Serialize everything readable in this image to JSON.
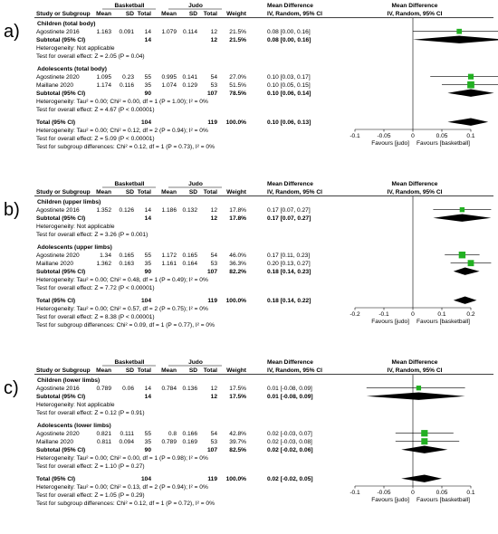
{
  "column_headers": {
    "study": "Study or Subgroup",
    "group1": "Basketball",
    "group2": "Judo",
    "mean": "Mean",
    "sd": "SD",
    "total": "Total",
    "weight": "Weight",
    "md_title": "Mean Difference",
    "md_method": "IV, Random, 95% CI"
  },
  "panels": [
    {
      "letter": "a)",
      "subgroups": [
        {
          "title": "Children (total body)",
          "studies": [
            {
              "name": "Agostinete 2016",
              "m1": "1.163",
              "sd1": "0.091",
              "n1": "14",
              "m2": "1.079",
              "sd2": "0.114",
              "n2": "12",
              "weight": "21.5%",
              "ci_text": "0.08 [0.00, 0.16]",
              "est": 0.08,
              "lo": 0.0,
              "hi": 0.16
            }
          ],
          "subtotal": {
            "label": "Subtotal (95% CI)",
            "n1": "14",
            "n2": "12",
            "weight": "21.5%",
            "ci_text": "0.08 [0.00, 0.16]",
            "est": 0.08,
            "lo": 0.0,
            "hi": 0.16
          },
          "heterogeneity": "Heterogeneity: Not applicable",
          "overall_test": "Test for overall effect: Z = 2.05 (P = 0.04)"
        },
        {
          "title": "Adolescents (total body)",
          "studies": [
            {
              "name": "Agostinete 2020",
              "m1": "1.095",
              "sd1": "0.23",
              "n1": "55",
              "m2": "0.995",
              "sd2": "0.141",
              "n2": "54",
              "weight": "27.0%",
              "ci_text": "0.10 [0.03, 0.17]",
              "est": 0.1,
              "lo": 0.03,
              "hi": 0.17
            },
            {
              "name": "Maillane 2020",
              "m1": "1.174",
              "sd1": "0.116",
              "n1": "35",
              "m2": "1.074",
              "sd2": "0.129",
              "n2": "53",
              "weight": "51.5%",
              "ci_text": "0.10 [0.05, 0.15]",
              "est": 0.1,
              "lo": 0.05,
              "hi": 0.15
            }
          ],
          "subtotal": {
            "label": "Subtotal (95% CI)",
            "n1": "90",
            "n2": "107",
            "weight": "78.5%",
            "ci_text": "0.10 [0.06, 0.14]",
            "est": 0.1,
            "lo": 0.06,
            "hi": 0.14
          },
          "heterogeneity": "Heterogeneity: Tau² = 0.00; Chi² = 0.00, df = 1 (P = 1.00); I² = 0%",
          "overall_test": "Test for overall effect: Z = 4.67 (P < 0.00001)"
        }
      ],
      "total": {
        "label": "Total (95% CI)",
        "n1": "104",
        "n2": "119",
        "weight": "100.0%",
        "ci_text": "0.10 [0.06, 0.13]",
        "est": 0.1,
        "lo": 0.06,
        "hi": 0.13
      },
      "footer": [
        "Heterogeneity: Tau² = 0.00; Chi² = 0.12, df = 2 (P = 0.94); I² = 0%",
        "Test for overall effect: Z = 5.09 (P < 0.00001)",
        "Test for subgroup differences: Chi² = 0.12, df = 1 (P = 0.73), I² = 0%"
      ],
      "axis": {
        "min": -0.1,
        "max": 0.1,
        "ticks": [
          -0.1,
          -0.05,
          0,
          0.05,
          0.1
        ],
        "tick_labels": [
          "-0.1",
          "-0.05",
          "0",
          "0.05",
          "0.1"
        ],
        "fav_left": "Favours [judo]",
        "fav_right": "Favours [basketball]"
      }
    },
    {
      "letter": "b)",
      "subgroups": [
        {
          "title": "Children (upper limbs)",
          "studies": [
            {
              "name": "Agostinete 2016",
              "m1": "1.352",
              "sd1": "0.126",
              "n1": "14",
              "m2": "1.186",
              "sd2": "0.132",
              "n2": "12",
              "weight": "17.8%",
              "ci_text": "0.17 [0.07, 0.27]",
              "est": 0.17,
              "lo": 0.07,
              "hi": 0.27
            }
          ],
          "subtotal": {
            "label": "Subtotal (95% CI)",
            "n1": "14",
            "n2": "12",
            "weight": "17.8%",
            "ci_text": "0.17 [0.07, 0.27]",
            "est": 0.17,
            "lo": 0.07,
            "hi": 0.27
          },
          "heterogeneity": "Heterogeneity: Not applicable",
          "overall_test": "Test for overall effect: Z = 3.26 (P = 0.001)"
        },
        {
          "title": "Adolescents (upper limbs)",
          "studies": [
            {
              "name": "Agostinete 2020",
              "m1": "1.34",
              "sd1": "0.165",
              "n1": "55",
              "m2": "1.172",
              "sd2": "0.165",
              "n2": "54",
              "weight": "46.0%",
              "ci_text": "0.17 [0.11, 0.23]",
              "est": 0.17,
              "lo": 0.11,
              "hi": 0.23
            },
            {
              "name": "Maillane 2020",
              "m1": "1.362",
              "sd1": "0.163",
              "n1": "35",
              "m2": "1.161",
              "sd2": "0.164",
              "n2": "53",
              "weight": "36.3%",
              "ci_text": "0.20 [0.13, 0.27]",
              "est": 0.2,
              "lo": 0.13,
              "hi": 0.27
            }
          ],
          "subtotal": {
            "label": "Subtotal (95% CI)",
            "n1": "90",
            "n2": "107",
            "weight": "82.2%",
            "ci_text": "0.18 [0.14, 0.23]",
            "est": 0.18,
            "lo": 0.14,
            "hi": 0.23
          },
          "heterogeneity": "Heterogeneity: Tau² = 0.00; Chi² = 0.48, df = 1 (P = 0.49); I² = 0%",
          "overall_test": "Test for overall effect: Z = 7.72 (P < 0.00001)"
        }
      ],
      "total": {
        "label": "Total (95% CI)",
        "n1": "104",
        "n2": "119",
        "weight": "100.0%",
        "ci_text": "0.18 [0.14, 0.22]",
        "est": 0.18,
        "lo": 0.14,
        "hi": 0.22
      },
      "footer": [
        "Heterogeneity: Tau² = 0.00; Chi² = 0.57, df = 2 (P = 0.75); I² = 0%",
        "Test for overall effect: Z = 8.38 (P < 0.00001)",
        "Test for subgroup differences: Chi² = 0.09, df = 1 (P = 0.77), I² = 0%"
      ],
      "axis": {
        "min": -0.2,
        "max": 0.2,
        "ticks": [
          -0.2,
          -0.1,
          0,
          0.1,
          0.2
        ],
        "tick_labels": [
          "-0.2",
          "-0.1",
          "0",
          "0.1",
          "0.2"
        ],
        "fav_left": "Favours [judo]",
        "fav_right": "Favours [basketball]"
      }
    },
    {
      "letter": "c)",
      "subgroups": [
        {
          "title": "Children (lower limbs)",
          "studies": [
            {
              "name": "Agostinete 2016",
              "m1": "0.789",
              "sd1": "0.06",
              "n1": "14",
              "m2": "0.784",
              "sd2": "0.136",
              "n2": "12",
              "weight": "17.5%",
              "ci_text": "0.01 [-0.08, 0.09]",
              "est": 0.01,
              "lo": -0.08,
              "hi": 0.09
            }
          ],
          "subtotal": {
            "label": "Subtotal (95% CI)",
            "n1": "14",
            "n2": "12",
            "weight": "17.5%",
            "ci_text": "0.01 [-0.08, 0.09]",
            "est": 0.01,
            "lo": -0.08,
            "hi": 0.09
          },
          "heterogeneity": "Heterogeneity: Not applicable",
          "overall_test": "Test for overall effect: Z = 0.12 (P = 0.91)"
        },
        {
          "title": "Adolescents (lower limbs)",
          "studies": [
            {
              "name": "Agostinete 2020",
              "m1": "0.821",
              "sd1": "0.111",
              "n1": "55",
              "m2": "0.8",
              "sd2": "0.166",
              "n2": "54",
              "weight": "42.8%",
              "ci_text": "0.02 [-0.03, 0.07]",
              "est": 0.02,
              "lo": -0.03,
              "hi": 0.07
            },
            {
              "name": "Maillane 2020",
              "m1": "0.811",
              "sd1": "0.094",
              "n1": "35",
              "m2": "0.789",
              "sd2": "0.169",
              "n2": "53",
              "weight": "39.7%",
              "ci_text": "0.02 [-0.03, 0.08]",
              "est": 0.02,
              "lo": -0.03,
              "hi": 0.08
            }
          ],
          "subtotal": {
            "label": "Subtotal (95% CI)",
            "n1": "90",
            "n2": "107",
            "weight": "82.5%",
            "ci_text": "0.02 [-0.02, 0.06]",
            "est": 0.02,
            "lo": -0.02,
            "hi": 0.06
          },
          "heterogeneity": "Heterogeneity: Tau² = 0.00; Chi² = 0.00, df = 1 (P = 0.98); I² = 0%",
          "overall_test": "Test for overall effect: Z = 1.10 (P = 0.27)"
        }
      ],
      "total": {
        "label": "Total (95% CI)",
        "n1": "104",
        "n2": "119",
        "weight": "100.0%",
        "ci_text": "0.02 [-0.02, 0.05]",
        "est": 0.02,
        "lo": -0.02,
        "hi": 0.05
      },
      "footer": [
        "Heterogeneity: Tau² = 0.00; Chi² = 0.13, df = 2 (P = 0.94); I² = 0%",
        "Test for overall effect: Z = 1.05 (P = 0.29)",
        "Test for subgroup differences: Chi² = 0.12, df = 1 (P = 0.72), I² = 0%"
      ],
      "axis": {
        "min": -0.1,
        "max": 0.1,
        "ticks": [
          -0.1,
          -0.05,
          0,
          0.05,
          0.1
        ],
        "tick_labels": [
          "-0.1",
          "-0.05",
          "0",
          "0.05",
          "0.1"
        ],
        "fav_left": "Favours [judo]",
        "fav_right": "Favours [basketball]"
      }
    }
  ],
  "colors": {
    "square": "#22b022",
    "diamond": "#000000",
    "line": "#000000"
  },
  "chart_data": {
    "type": "forest",
    "measure": "Mean Difference (IV, Random, 95% CI)",
    "panels": [
      {
        "label": "a)",
        "estimates": [
          0.08,
          0.08,
          0.1,
          0.1,
          0.1,
          0.1
        ],
        "xlim": [
          -0.1,
          0.1
        ]
      },
      {
        "label": "b)",
        "estimates": [
          0.17,
          0.17,
          0.17,
          0.2,
          0.18,
          0.18
        ],
        "xlim": [
          -0.2,
          0.2
        ]
      },
      {
        "label": "c)",
        "estimates": [
          0.01,
          0.01,
          0.02,
          0.02,
          0.02,
          0.02
        ],
        "xlim": [
          -0.1,
          0.1
        ]
      }
    ]
  }
}
